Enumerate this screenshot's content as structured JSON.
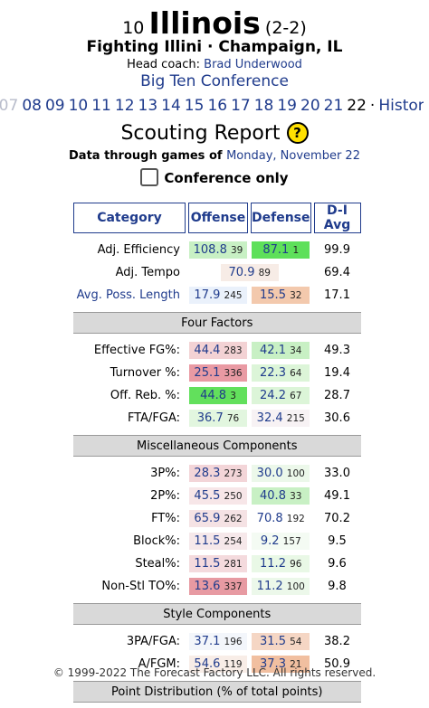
{
  "header": {
    "rank": "10",
    "team": "Illinois",
    "record": "(2-2)",
    "subtitle": "Fighting Illini · Champaign, IL",
    "coach_label": "Head coach:",
    "coach": "Brad Underwood",
    "conference": "Big Ten Conference"
  },
  "years": {
    "items": [
      "'07",
      "08",
      "09",
      "10",
      "11",
      "12",
      "13",
      "14",
      "15",
      "16",
      "17",
      "18",
      "19",
      "20",
      "21",
      "22",
      "·",
      "History"
    ],
    "current": "22"
  },
  "scouting": {
    "title": "Scouting Report",
    "help_icon": "question-icon",
    "data_through_label": "Data through games of",
    "data_through_date": "Monday, November 22",
    "conference_only_label": "Conference only",
    "conference_only_checked": false
  },
  "table": {
    "headers": [
      "Category",
      "Offense",
      "Defense",
      "D-I Avg"
    ],
    "sections": [
      {
        "title": "",
        "rows": [
          {
            "label": "Adj. Efficiency",
            "link": false,
            "off": "108.8",
            "off_rank": "39",
            "def": "87.1",
            "def_rank": "1",
            "avg": "99.9",
            "off_color": "#c8f0c4",
            "def_color": "#5ee05a"
          },
          {
            "label": "Adj. Tempo",
            "link": false,
            "off": "70.9",
            "off_rank": "89",
            "def": "",
            "def_rank": "",
            "avg": "69.4",
            "off_color": "#f7ece6",
            "def_color": "",
            "merged": true
          },
          {
            "label": "Avg. Poss. Length",
            "link": true,
            "off": "17.9",
            "off_rank": "245",
            "def": "15.5",
            "def_rank": "32",
            "avg": "17.1",
            "off_color": "#eaf1fb",
            "def_color": "#f3c9ad"
          }
        ]
      },
      {
        "title": "Four Factors",
        "rows": [
          {
            "label": "Effective FG%:",
            "link": false,
            "off": "44.4",
            "off_rank": "283",
            "def": "42.1",
            "def_rank": "34",
            "avg": "49.3",
            "off_color": "#f3d2d4",
            "def_color": "#c8f0c4"
          },
          {
            "label": "Turnover %:",
            "link": false,
            "off": "25.1",
            "off_rank": "336",
            "def": "22.3",
            "def_rank": "64",
            "avg": "19.4",
            "off_color": "#e99aa3",
            "def_color": "#dcf5d8"
          },
          {
            "label": "Off. Reb. %:",
            "link": false,
            "off": "44.8",
            "off_rank": "3",
            "def": "24.2",
            "def_rank": "67",
            "avg": "28.7",
            "off_color": "#62e05c",
            "def_color": "#dcf5d8"
          },
          {
            "label": "FTA/FGA:",
            "link": false,
            "off": "36.7",
            "off_rank": "76",
            "def": "32.4",
            "def_rank": "215",
            "avg": "30.6",
            "off_color": "#e2f6df",
            "def_color": "#f7f2f4"
          }
        ]
      },
      {
        "title": "Miscellaneous Components",
        "rows": [
          {
            "label": "3P%:",
            "link": false,
            "off": "28.3",
            "off_rank": "273",
            "def": "30.0",
            "def_rank": "100",
            "avg": "33.0",
            "off_color": "#f3d5d8",
            "def_color": "#ecf8ea"
          },
          {
            "label": "2P%:",
            "link": false,
            "off": "45.5",
            "off_rank": "250",
            "def": "40.8",
            "def_rank": "33",
            "avg": "49.1",
            "off_color": "#f7e6e8",
            "def_color": "#c8f0c4"
          },
          {
            "label": "FT%:",
            "link": false,
            "off": "65.9",
            "off_rank": "262",
            "def": "70.8",
            "def_rank": "192",
            "avg": "70.2",
            "off_color": "#f5e2e4",
            "def_color": "#ffffff"
          },
          {
            "label": "Block%:",
            "link": false,
            "off": "11.5",
            "off_rank": "254",
            "def": "9.2",
            "def_rank": "157",
            "avg": "9.5",
            "off_color": "#f6e8ea",
            "def_color": "#f4fbf3"
          },
          {
            "label": "Steal%:",
            "link": false,
            "off": "11.5",
            "off_rank": "281",
            "def": "11.2",
            "def_rank": "96",
            "avg": "9.6",
            "off_color": "#f4dadd",
            "def_color": "#e9f8e6"
          },
          {
            "label": "Non-Stl TO%:",
            "link": false,
            "off": "13.6",
            "off_rank": "337",
            "def": "11.2",
            "def_rank": "100",
            "avg": "9.8",
            "off_color": "#e79aa2",
            "def_color": "#ecf8ea"
          }
        ]
      },
      {
        "title": "Style Components",
        "rows": [
          {
            "label": "3PA/FGA:",
            "link": false,
            "off": "37.1",
            "off_rank": "196",
            "def": "31.5",
            "def_rank": "54",
            "avg": "38.2",
            "off_color": "#f3f6fb",
            "def_color": "#f5d6c4"
          },
          {
            "label": "A/FGM:",
            "link": false,
            "off": "54.6",
            "off_rank": "119",
            "def": "37.3",
            "def_rank": "21",
            "avg": "50.9",
            "off_color": "#f8ede7",
            "def_color": "#f1bfa0"
          }
        ]
      },
      {
        "title": "Point Distribution (% of total points)",
        "rows": []
      }
    ]
  },
  "footer": "© 1999-2022 The Forecast Factory LLC. All rights reserved."
}
